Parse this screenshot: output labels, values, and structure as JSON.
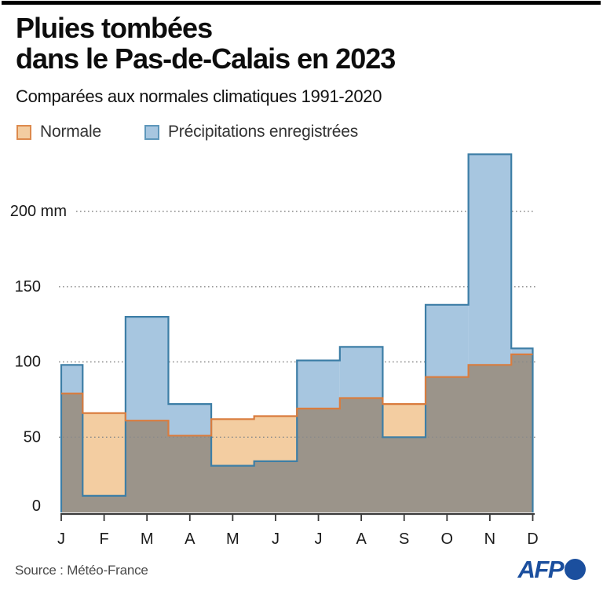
{
  "header": {
    "title_line1": "Pluies tombées",
    "title_line2": "dans le Pas-de-Calais en 2023",
    "subtitle": "Comparées aux normales climatiques 1991-2020"
  },
  "legend": [
    {
      "label": "Normale"
    },
    {
      "label": "Précipitations enregistrées"
    }
  ],
  "chart_data": {
    "type": "area",
    "subtype": "step-area-comparison",
    "title": "Pluies tombées dans le Pas-de-Calais en 2023",
    "subtitle": "Comparées aux normales climatiques 1991-2020",
    "unit": "mm",
    "categories": [
      "J",
      "F",
      "M",
      "A",
      "M",
      "J",
      "J",
      "A",
      "S",
      "O",
      "N",
      "D"
    ],
    "series": [
      {
        "name": "Normale",
        "values": [
          79,
          66,
          61,
          51,
          62,
          64,
          69,
          76,
          72,
          90,
          98,
          105
        ]
      },
      {
        "name": "Précipitations enregistrées",
        "values": [
          98,
          11,
          130,
          72,
          31,
          34,
          101,
          110,
          50,
          138,
          238,
          109
        ]
      }
    ],
    "yticks": [
      0,
      50,
      100,
      150,
      200
    ],
    "ytick_labels": [
      "0",
      "50",
      "100",
      "150",
      "200 mm"
    ],
    "ylim": [
      0,
      245
    ],
    "grid": "horizontal-dotted",
    "legend_position": "top-left"
  },
  "footer": {
    "source": "Source : Météo-France",
    "logo_label": "AFP"
  },
  "colors": {
    "normale_fill": "#F3CDA1",
    "normale_stroke": "#D97C3E",
    "recorded_fill": "#A7C6E0",
    "recorded_stroke": "#3D7EA6",
    "overlap_fill": "#9B948A",
    "legend_normale_border": "#DD8A4D",
    "legend_recorded_border": "#5E97BB",
    "grid": "#8A8A8A",
    "axis": "#3A3A3A",
    "tick_label": "#1A1A1A",
    "afp_blue": "#1B4F9E"
  }
}
